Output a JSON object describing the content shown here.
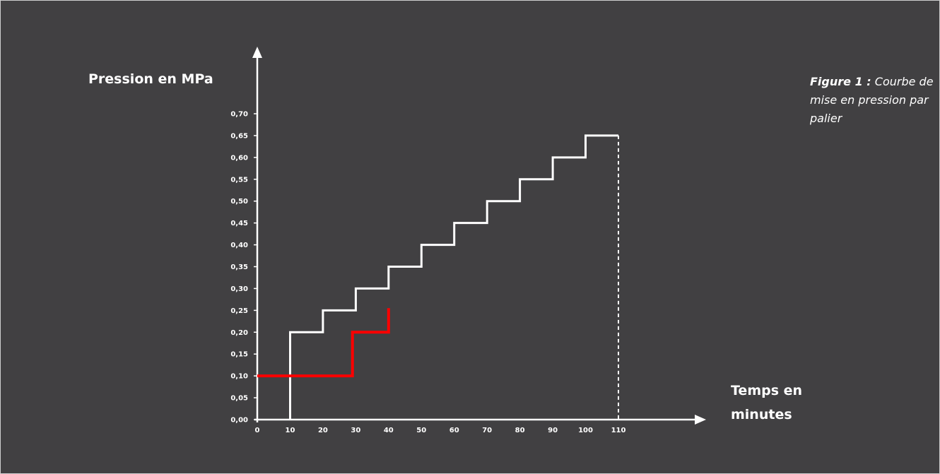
{
  "caption": {
    "lead": "Figure 1 :",
    "text": "Courbe de mise en pression par palier"
  },
  "chart_data": {
    "type": "line",
    "xlabel": "Temps en minutes",
    "ylabel": "Pression en MPa",
    "xlim": [
      0,
      110
    ],
    "ylim": [
      0,
      0.7
    ],
    "x_ticks": [
      "0",
      "10",
      "20",
      "30",
      "40",
      "50",
      "60",
      "70",
      "80",
      "90",
      "100",
      "110"
    ],
    "y_ticks": [
      "0,00",
      "0,05",
      "0,10",
      "0,15",
      "0,20",
      "0,25",
      "0,30",
      "0,35",
      "0,40",
      "0,45",
      "0,50",
      "0,55",
      "0,60",
      "0,65",
      "0,70"
    ],
    "grid": false,
    "series": [
      {
        "color": "#ffffff",
        "step": true,
        "points": [
          [
            10,
            0
          ],
          [
            10,
            0.2
          ],
          [
            20,
            0.2
          ],
          [
            20,
            0.25
          ],
          [
            30,
            0.25
          ],
          [
            30,
            0.3
          ],
          [
            40,
            0.3
          ],
          [
            40,
            0.35
          ],
          [
            50,
            0.35
          ],
          [
            50,
            0.4
          ],
          [
            60,
            0.4
          ],
          [
            60,
            0.45
          ],
          [
            70,
            0.45
          ],
          [
            70,
            0.5
          ],
          [
            80,
            0.5
          ],
          [
            80,
            0.55
          ],
          [
            90,
            0.55
          ],
          [
            90,
            0.6
          ],
          [
            100,
            0.6
          ],
          [
            100,
            0.65
          ],
          [
            110,
            0.65
          ]
        ]
      },
      {
        "color": "#ffffff",
        "dashed": true,
        "points": [
          [
            110,
            0.65
          ],
          [
            110,
            0
          ]
        ]
      },
      {
        "color": "#ff0000",
        "step": true,
        "points": [
          [
            0,
            0.1
          ],
          [
            29,
            0.1
          ],
          [
            29,
            0.2
          ],
          [
            40,
            0.2
          ],
          [
            40,
            0.255
          ]
        ]
      }
    ]
  }
}
